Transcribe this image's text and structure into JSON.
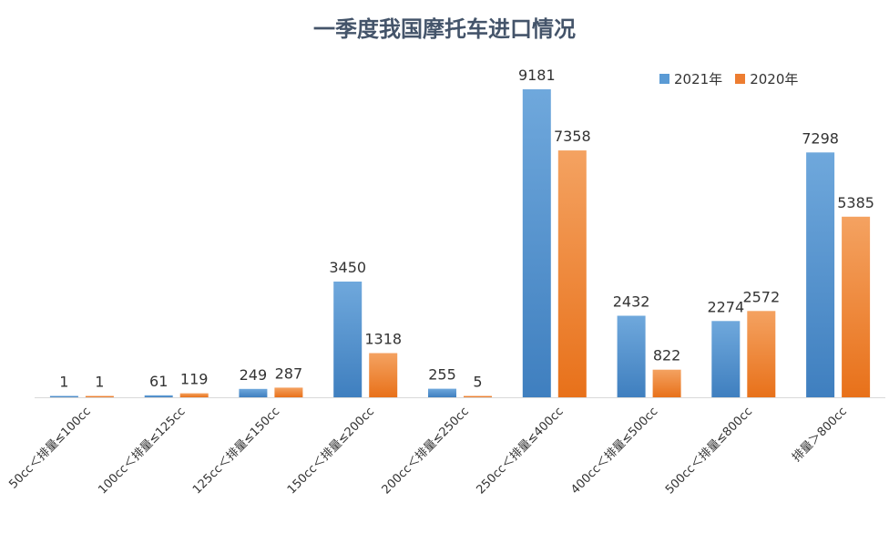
{
  "chart_data": {
    "type": "bar",
    "title": "一季度我国摩托车进口情况",
    "xlabel": "",
    "ylabel": "",
    "categories": [
      "50cc＜排量≤100cc",
      "100cc＜排量≤125cc",
      "125cc＜排量≤150cc",
      "150cc＜排量≤200cc",
      "200cc＜排量≤250cc",
      "250cc＜排量≤400cc",
      "400cc＜排量≤500cc",
      "500cc＜排量≤800cc",
      "排量＞800cc"
    ],
    "series": [
      {
        "name": "2021年",
        "color": "#5b9bd5",
        "values": [
          1,
          61,
          249,
          3450,
          255,
          9181,
          2432,
          2274,
          7298
        ]
      },
      {
        "name": "2020年",
        "color": "#ed7d31",
        "values": [
          1,
          119,
          287,
          1318,
          5,
          7358,
          822,
          2572,
          5385
        ]
      }
    ],
    "ylim": [
      0,
      9181
    ],
    "grid": false,
    "legend": "top-right"
  }
}
